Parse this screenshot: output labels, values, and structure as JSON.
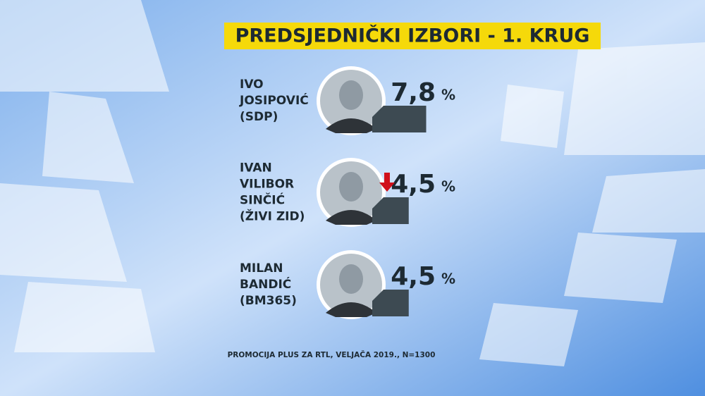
{
  "chart_data": {
    "type": "bar",
    "title": "PREDSJEDNIČKI IZBORI - 1. KRUG",
    "categories": [
      [
        "IVO",
        "JOSIPOVIĆ",
        "(SDP)"
      ],
      [
        "IVAN",
        "VILIBOR",
        "SINČIĆ",
        "(ŽIVI ZID)"
      ],
      [
        "MILAN",
        "BANDIĆ",
        "(BM365)"
      ]
    ],
    "values": [
      7.8,
      4.5,
      4.5
    ],
    "value_labels": [
      "7,8",
      "4,5",
      "4,5"
    ],
    "unit": "%",
    "trends": [
      null,
      "down",
      null
    ],
    "color": "#3d4a52",
    "source": "PROMOCIJA PLUS ZA RTL, VELJAČA 2019., N=1300"
  }
}
